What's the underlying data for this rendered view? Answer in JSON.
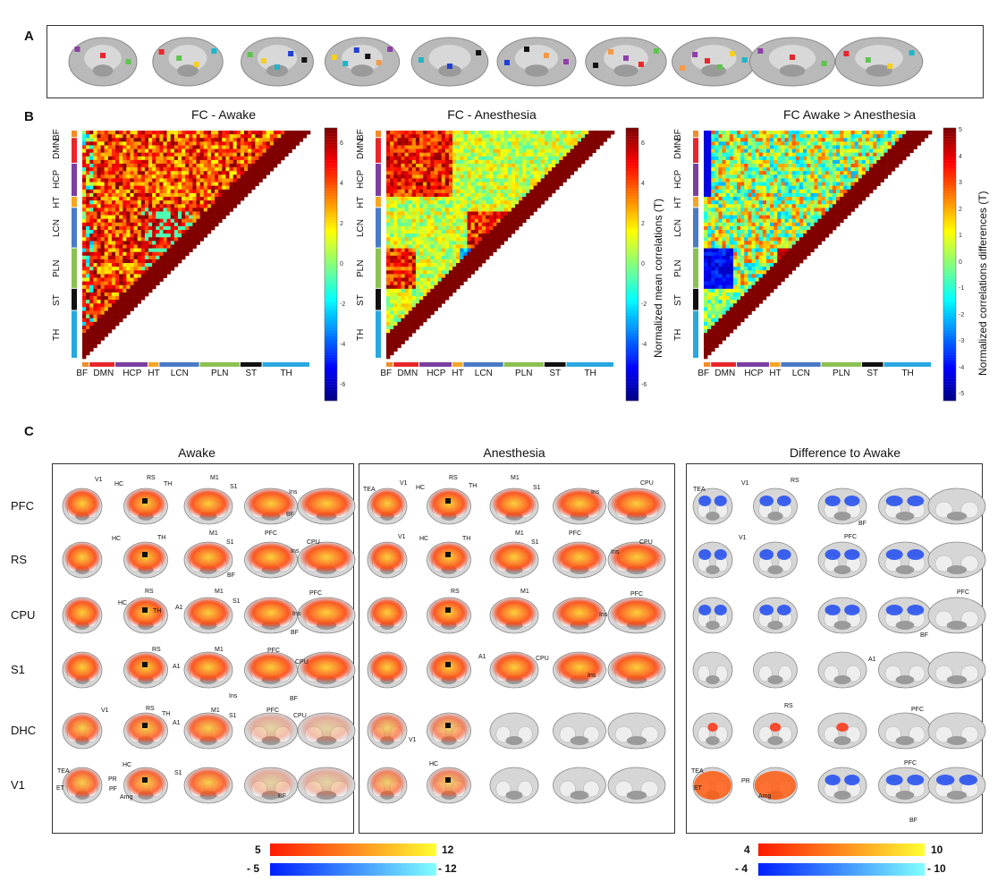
{
  "panel_labels": {
    "a": "A",
    "b": "B",
    "c": "C"
  },
  "panel_b": {
    "matrix_titles": [
      "FC - Awake",
      "FC - Anesthesia",
      "FC  Awake > Anesthesia"
    ],
    "regions": [
      "BF",
      "DMN",
      "HCP",
      "HT",
      "LCN",
      "PLN",
      "ST",
      "TH"
    ],
    "region_colors": [
      "#f28c28",
      "#e8262b",
      "#7b3fa0",
      "#f5a623",
      "#4a7bc8",
      "#8cc152",
      "#111111",
      "#29a8e0"
    ],
    "colorbar_titles": [
      "Normalized mean correlations (T)",
      "Normalized correlations differences (T)"
    ],
    "cb1_ticks": [
      "6",
      "4",
      "2",
      "0",
      "-2",
      "-4",
      "-6"
    ],
    "cb2_ticks": [
      "5",
      "4",
      "3",
      "2",
      "1",
      "0",
      "-1",
      "-2",
      "-3",
      "-4",
      "-5"
    ]
  },
  "panel_c": {
    "section_titles": [
      "Awake",
      "Anesthesia",
      "Difference to Awake"
    ],
    "rows": [
      "PFC",
      "RS",
      "CPU",
      "S1",
      "DHC",
      "V1"
    ],
    "annotations": [
      "V1",
      "HC",
      "RS",
      "TH",
      "M1",
      "S1",
      "Ins",
      "BF",
      "CPU",
      "PFC",
      "A1",
      "TEA",
      "ET",
      "PR",
      "PF",
      "Amg"
    ],
    "scale_left": {
      "pos_min": "5",
      "pos_max": "12",
      "neg_min": "- 5",
      "neg_max": "- 12"
    },
    "scale_right": {
      "pos_min": "4",
      "pos_max": "10",
      "neg_min": "- 4",
      "neg_max": "- 10"
    }
  },
  "colors": {
    "hot_low": "#ff1a00",
    "hot_high": "#ffff30",
    "cold_low": "#0020ff",
    "cold_high": "#80ffff"
  }
}
